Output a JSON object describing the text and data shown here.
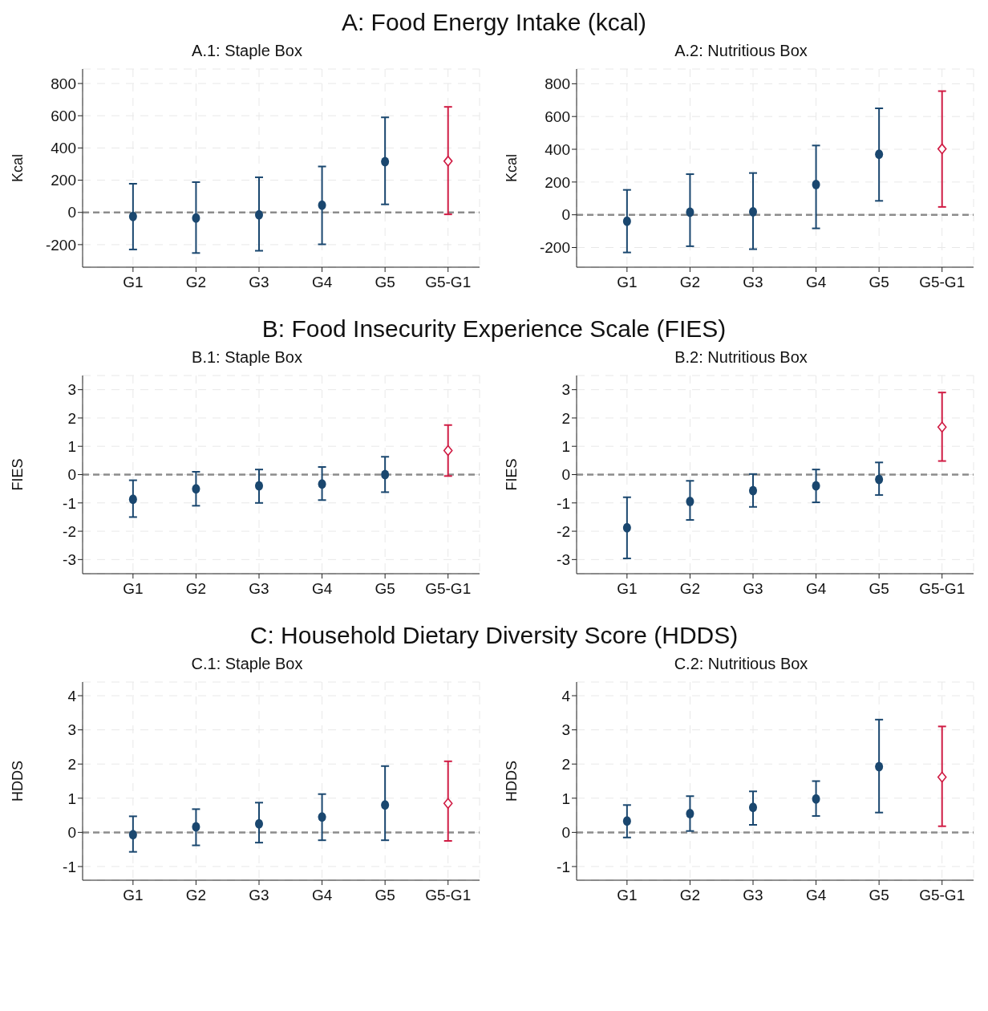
{
  "chart_data": [
    {
      "type": "scatter",
      "title": "A.1: Staple Box",
      "annotations": [
        "A: Food Energy Intake (kcal)"
      ],
      "ylabel": "Kcal",
      "categories": [
        "G1",
        "G2",
        "G3",
        "G4",
        "G5",
        "G5-G1"
      ],
      "ylim": [
        -340,
        890
      ],
      "yticks": [
        -200,
        0,
        200,
        400,
        600,
        800
      ],
      "grid": true,
      "legend": false,
      "series": [
        {
          "color": "#1a476f",
          "marker": "circle",
          "values": [
            -25,
            -35,
            -15,
            45,
            315,
            null
          ],
          "errors": [
            [
              -230,
              178
            ],
            [
              -252,
              188
            ],
            [
              -238,
              218
            ],
            [
              -198,
              285
            ],
            [
              50,
              590
            ],
            null
          ]
        },
        {
          "color": "#d01c44",
          "marker": "diamond",
          "values": [
            null,
            null,
            null,
            null,
            null,
            318
          ],
          "errors": [
            null,
            null,
            null,
            null,
            null,
            [
              -12,
              655
            ]
          ]
        }
      ],
      "ref_lines": [
        {
          "axis": "y",
          "value": 0,
          "color": "#8c8c8c",
          "line_style": "dashed"
        }
      ]
    },
    {
      "type": "scatter",
      "title": "A.2: Nutritious Box",
      "ylabel": "Kcal",
      "categories": [
        "G1",
        "G2",
        "G3",
        "G4",
        "G5",
        "G5-G1"
      ],
      "ylim": [
        -320,
        890
      ],
      "yticks": [
        -200,
        0,
        200,
        400,
        600,
        800
      ],
      "grid": true,
      "legend": false,
      "series": [
        {
          "color": "#1a476f",
          "marker": "circle",
          "values": [
            -40,
            15,
            18,
            185,
            370,
            null
          ],
          "errors": [
            [
              -230,
              152
            ],
            [
              -192,
              248
            ],
            [
              -210,
              255
            ],
            [
              -83,
              423
            ],
            [
              85,
              650
            ],
            null
          ]
        },
        {
          "color": "#d01c44",
          "marker": "diamond",
          "values": [
            null,
            null,
            null,
            null,
            null,
            402
          ],
          "errors": [
            null,
            null,
            null,
            null,
            null,
            [
              48,
              755
            ]
          ]
        }
      ],
      "ref_lines": [
        {
          "axis": "y",
          "value": 0,
          "color": "#8c8c8c",
          "line_style": "dashed"
        }
      ]
    },
    {
      "type": "scatter",
      "title": "B.1: Staple Box",
      "annotations": [
        "B: Food Insecurity Experience Scale (FIES)"
      ],
      "ylabel": "FIES",
      "categories": [
        "G1",
        "G2",
        "G3",
        "G4",
        "G5",
        "G5-G1"
      ],
      "ylim": [
        -3.5,
        3.5
      ],
      "yticks": [
        -3,
        -2,
        -1,
        0,
        1,
        2,
        3
      ],
      "grid": true,
      "legend": false,
      "series": [
        {
          "color": "#1a476f",
          "marker": "circle",
          "values": [
            -0.87,
            -0.5,
            -0.4,
            -0.33,
            0,
            null
          ],
          "errors": [
            [
              -1.5,
              -0.2
            ],
            [
              -1.1,
              0.1
            ],
            [
              -1.0,
              0.18
            ],
            [
              -0.9,
              0.27
            ],
            [
              -0.62,
              0.63
            ],
            null
          ]
        },
        {
          "color": "#d01c44",
          "marker": "diamond",
          "values": [
            null,
            null,
            null,
            null,
            null,
            0.85
          ],
          "errors": [
            null,
            null,
            null,
            null,
            null,
            [
              -0.05,
              1.75
            ]
          ]
        }
      ],
      "ref_lines": [
        {
          "axis": "y",
          "value": 0,
          "color": "#8c8c8c",
          "line_style": "dashed"
        }
      ]
    },
    {
      "type": "scatter",
      "title": "B.2: Nutritious Box",
      "ylabel": "FIES",
      "categories": [
        "G1",
        "G2",
        "G3",
        "G4",
        "G5",
        "G5-G1"
      ],
      "ylim": [
        -3.5,
        3.5
      ],
      "yticks": [
        -3,
        -2,
        -1,
        0,
        1,
        2,
        3
      ],
      "grid": true,
      "legend": false,
      "series": [
        {
          "color": "#1a476f",
          "marker": "circle",
          "values": [
            -1.88,
            -0.95,
            -0.57,
            -0.4,
            -0.17,
            null
          ],
          "errors": [
            [
              -2.96,
              -0.8
            ],
            [
              -1.6,
              -0.22
            ],
            [
              -1.14,
              0.02
            ],
            [
              -0.98,
              0.18
            ],
            [
              -0.72,
              0.43
            ],
            null
          ]
        },
        {
          "color": "#d01c44",
          "marker": "diamond",
          "values": [
            null,
            null,
            null,
            null,
            null,
            1.68
          ],
          "errors": [
            null,
            null,
            null,
            null,
            null,
            [
              0.48,
              2.9
            ]
          ]
        }
      ],
      "ref_lines": [
        {
          "axis": "y",
          "value": 0,
          "color": "#8c8c8c",
          "line_style": "dashed"
        }
      ]
    },
    {
      "type": "scatter",
      "title": "C.1: Staple Box",
      "annotations": [
        "C: Household Dietary Diversity Score (HDDS)"
      ],
      "ylabel": "HDDS",
      "categories": [
        "G1",
        "G2",
        "G3",
        "G4",
        "G5",
        "G5-G1"
      ],
      "ylim": [
        -1.4,
        4.4
      ],
      "yticks": [
        -1,
        0,
        1,
        2,
        3,
        4
      ],
      "grid": true,
      "legend": false,
      "series": [
        {
          "color": "#1a476f",
          "marker": "circle",
          "values": [
            -0.07,
            0.16,
            0.25,
            0.45,
            0.8,
            null
          ],
          "errors": [
            [
              -0.57,
              0.47
            ],
            [
              -0.38,
              0.68
            ],
            [
              -0.3,
              0.87
            ],
            [
              -0.23,
              1.12
            ],
            [
              -0.23,
              1.94
            ],
            null
          ]
        },
        {
          "color": "#d01c44",
          "marker": "diamond",
          "values": [
            null,
            null,
            null,
            null,
            null,
            0.85
          ],
          "errors": [
            null,
            null,
            null,
            null,
            null,
            [
              -0.25,
              2.08
            ]
          ]
        }
      ],
      "ref_lines": [
        {
          "axis": "y",
          "value": 0,
          "color": "#8c8c8c",
          "line_style": "dashed"
        }
      ]
    },
    {
      "type": "scatter",
      "title": "C.2: Nutritious Box",
      "ylabel": "HDDS",
      "categories": [
        "G1",
        "G2",
        "G3",
        "G4",
        "G5",
        "G5-G1"
      ],
      "ylim": [
        -1.4,
        4.4
      ],
      "yticks": [
        -1,
        0,
        1,
        2,
        3,
        4
      ],
      "grid": true,
      "legend": false,
      "series": [
        {
          "color": "#1a476f",
          "marker": "circle",
          "values": [
            0.33,
            0.55,
            0.73,
            0.98,
            1.92,
            null
          ],
          "errors": [
            [
              -0.15,
              0.8
            ],
            [
              0.04,
              1.06
            ],
            [
              0.22,
              1.2
            ],
            [
              0.48,
              1.5
            ],
            [
              0.58,
              3.3
            ],
            null
          ]
        },
        {
          "color": "#d01c44",
          "marker": "diamond",
          "values": [
            null,
            null,
            null,
            null,
            null,
            1.62
          ],
          "errors": [
            null,
            null,
            null,
            null,
            null,
            [
              0.18,
              3.1
            ]
          ]
        }
      ],
      "ref_lines": [
        {
          "axis": "y",
          "value": 0,
          "color": "#8c8c8c",
          "line_style": "dashed"
        }
      ]
    }
  ]
}
